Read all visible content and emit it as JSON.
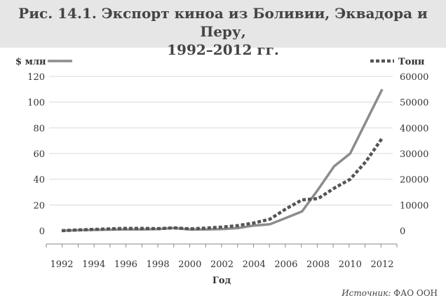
{
  "header": {
    "title_line1": "Рис. 14.1. Экспорт киноа из Боливии, Эквадора и Перу,",
    "title_line2": "1992–2012 гг."
  },
  "source": {
    "prefix": "Источник:",
    "text": "ФАО ООН"
  },
  "colors": {
    "header_bg": "#e6e6e6",
    "line_color": "#8c8c8c",
    "dashed_color": "#555555",
    "grid_color": "#d9d9d9",
    "text_color": "#333333"
  },
  "chart_data": {
    "type": "line",
    "xlabel": "Год",
    "x_ticks": [
      1992,
      1994,
      1996,
      1998,
      2000,
      2002,
      2004,
      2006,
      2008,
      2010,
      2012
    ],
    "y_left": {
      "label": "$ млн",
      "min": 0,
      "max": 120,
      "ticks": [
        0,
        20,
        40,
        60,
        80,
        100,
        120
      ]
    },
    "y_right": {
      "label": "Тонн",
      "min": 0,
      "max": 60000,
      "ticks": [
        0,
        10000,
        20000,
        30000,
        40000,
        50000,
        60000
      ]
    },
    "grid": "horizontal",
    "legend": "top",
    "series": [
      {
        "name": "$ млн",
        "axis": "left",
        "style": "solid",
        "x": [
          1992,
          1993,
          1994,
          1995,
          1996,
          1997,
          1998,
          1999,
          2000,
          2001,
          2002,
          2003,
          2004,
          2005,
          2006,
          2007,
          2008,
          2009,
          2010,
          2011,
          2012
        ],
        "y": [
          0,
          0.3,
          0.6,
          0.8,
          1,
          1,
          1.2,
          2,
          1,
          1,
          1.2,
          2,
          4,
          5,
          10,
          15,
          32,
          50,
          60,
          85,
          110
        ]
      },
      {
        "name": "Тонн",
        "axis": "right",
        "style": "dashed",
        "x": [
          1992,
          1993,
          1994,
          1995,
          1996,
          1997,
          1998,
          1999,
          2000,
          2001,
          2002,
          2003,
          2004,
          2005,
          2006,
          2007,
          2008,
          2009,
          2010,
          2011,
          2012
        ],
        "y": [
          0,
          300,
          500,
          700,
          900,
          900,
          800,
          1100,
          700,
          1000,
          1400,
          2000,
          3000,
          4500,
          8500,
          12000,
          12500,
          16500,
          20000,
          27000,
          36000
        ]
      }
    ]
  }
}
